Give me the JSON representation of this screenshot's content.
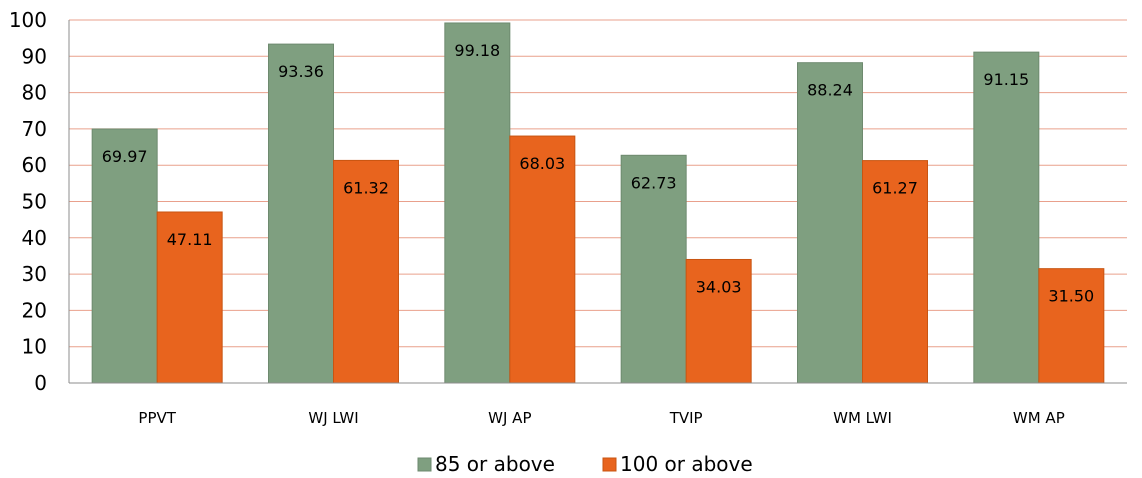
{
  "chart_data": {
    "type": "bar",
    "categories": [
      "PPVT",
      "WJ LWI",
      "WJ AP",
      "TVIP",
      "WM LWI",
      "WM AP"
    ],
    "series": [
      {
        "name": "85 or above",
        "color": "#7f9f80",
        "values": [
          69.97,
          93.36,
          99.18,
          62.73,
          88.24,
          91.15
        ],
        "labels": [
          "69.97",
          "93.36",
          "99.18",
          "62.73",
          "88.24",
          "91.15"
        ]
      },
      {
        "name": "100 or above",
        "color": "#e8641e",
        "values": [
          47.11,
          61.32,
          68.03,
          34.03,
          61.27,
          31.5
        ],
        "labels": [
          "47.11",
          "61.32",
          "68.03",
          "34.03",
          "61.27",
          "31.50"
        ]
      }
    ],
    "yticks": [
      "0",
      "10",
      "20",
      "30",
      "40",
      "50",
      "60",
      "70",
      "80",
      "90",
      "100"
    ],
    "ylim": [
      0,
      100
    ],
    "grid": true,
    "gridline_color": "#e9a08c",
    "legend_position": "bottom"
  }
}
